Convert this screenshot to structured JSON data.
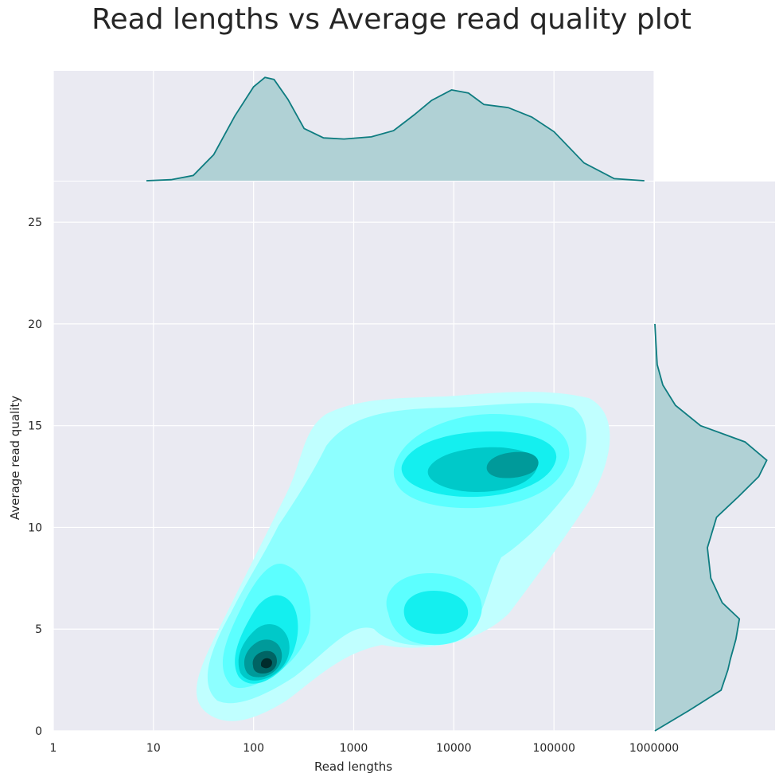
{
  "chart_data": {
    "type": "jointplot-kde",
    "title": "Read lengths vs Average read quality plot",
    "xlabel": "Read lengths",
    "ylabel": "Average read quality",
    "x_scale": "log",
    "xlim": [
      1,
      1000000
    ],
    "ylim": [
      0,
      27
    ],
    "x_ticks": [
      "1",
      "10",
      "100",
      "1000",
      "10000",
      "100000",
      "1000000"
    ],
    "y_ticks": [
      "0",
      "5",
      "10",
      "15",
      "20",
      "25"
    ],
    "grid": true,
    "density_peaks": [
      {
        "x": 150,
        "y": 3.1,
        "level": "highest"
      },
      {
        "x": 40000,
        "y": 13.2,
        "level": "high"
      },
      {
        "x": 10000,
        "y": 6.0,
        "level": "medium"
      }
    ],
    "marginal_x": {
      "x": [
        8.5,
        15,
        25,
        40,
        65,
        100,
        130,
        160,
        220,
        320,
        500,
        800,
        1500,
        2500,
        4000,
        6000,
        9500,
        14000,
        20000,
        35000,
        60000,
        100000,
        200000,
        400000,
        800000
      ],
      "density": [
        0.0,
        0.01,
        0.05,
        0.25,
        0.62,
        0.9,
        0.99,
        0.97,
        0.78,
        0.5,
        0.41,
        0.4,
        0.42,
        0.48,
        0.63,
        0.77,
        0.87,
        0.84,
        0.73,
        0.7,
        0.61,
        0.47,
        0.17,
        0.02,
        0.0
      ]
    },
    "marginal_y": {
      "y": [
        0,
        1,
        2,
        3,
        3.5,
        4.5,
        5.5,
        6.3,
        7.5,
        9,
        10.5,
        11.5,
        12.5,
        13.3,
        14.2,
        15,
        16,
        17,
        18,
        19,
        20
      ],
      "density": [
        0.0,
        0.3,
        0.58,
        0.64,
        0.66,
        0.71,
        0.74,
        0.59,
        0.49,
        0.46,
        0.54,
        0.73,
        0.91,
        0.98,
        0.79,
        0.4,
        0.18,
        0.07,
        0.02,
        0.01,
        0.0
      ]
    }
  },
  "colors": {
    "background": "#eaeaf2",
    "grid": "#ffffff",
    "marginal_line": "#0e7c80",
    "marginal_fill": "#b0d1d5",
    "contour_levels": [
      "#c0ffff",
      "#8dffff",
      "#5cffff",
      "#14efef",
      "#00c9c9",
      "#009a9a",
      "#006464",
      "#002c2c"
    ]
  }
}
